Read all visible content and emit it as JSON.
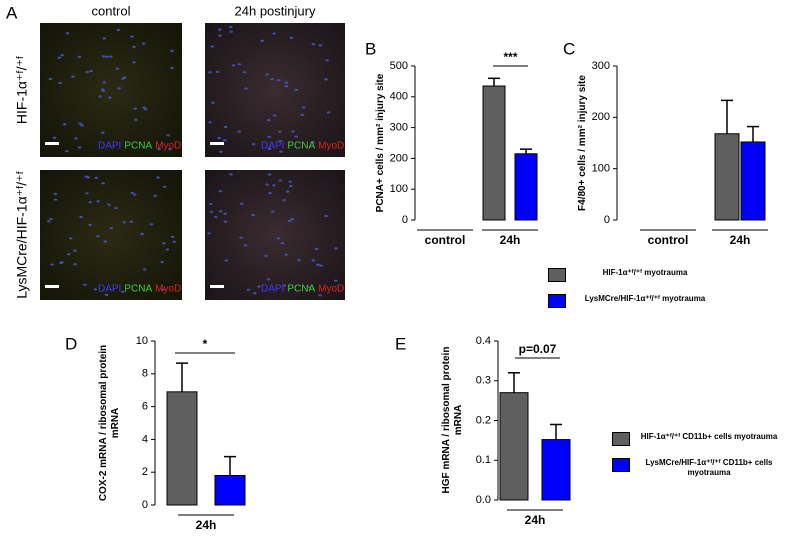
{
  "panel_a": {
    "label": "A",
    "columns": [
      "control",
      "24h postinjury"
    ],
    "rows": [
      "HIF-1α⁺ᶠ/⁺ᶠ",
      "LysMCre/HIF-1α⁺ᶠ/⁺ᶠ"
    ],
    "images": [
      {
        "stains": [
          "DAPI",
          "PCNA",
          "MyoD"
        ]
      },
      {
        "stains": [
          "DAPI",
          "PCNA",
          "MyoD"
        ]
      },
      {
        "stains": [
          "DAPI",
          "PCNA",
          "MyoD"
        ]
      },
      {
        "stains": [
          "DAPI",
          "PCNA",
          "MyoD"
        ]
      }
    ]
  },
  "chart_data": [
    {
      "type": "bar",
      "panel_label": "B",
      "y_label": "PCNA+ cells / mm² injury site",
      "categories": [
        "control",
        "24h"
      ],
      "annotation": "***",
      "series": [
        {
          "name": "HIF-1α⁺ᶠ/⁺ᶠ myotrauma",
          "color": "#5f5f5f",
          "values": [
            0,
            435
          ],
          "errors": [
            null,
            25
          ]
        },
        {
          "name": "LysMCre/HIF-1α⁺ᶠ/⁺ᶠ myotrauma",
          "color": "#0000ff",
          "values": [
            0,
            215
          ],
          "errors": [
            null,
            15
          ]
        }
      ],
      "ylim": [
        0,
        500
      ],
      "yticks": [
        0,
        100,
        200,
        300,
        400,
        500
      ]
    },
    {
      "type": "bar",
      "panel_label": "C",
      "y_label": "F4/80+ cells / mm² injury site",
      "categories": [
        "control",
        "24h"
      ],
      "series": [
        {
          "color": "#5f5f5f",
          "values": [
            0,
            168
          ],
          "errors": [
            null,
            65
          ]
        },
        {
          "color": "#0000ff",
          "values": [
            0,
            152
          ],
          "errors": [
            null,
            30
          ]
        }
      ],
      "ylim": [
        0,
        300
      ],
      "yticks": [
        0,
        100,
        200,
        300
      ]
    },
    {
      "type": "bar",
      "panel_label": "D",
      "y_label": "COX-2 mRNA / ribosomal protein mRNA",
      "categories": [
        "24h"
      ],
      "annotation": "*",
      "series": [
        {
          "color": "#5f5f5f",
          "values": [
            6.9
          ],
          "errors": [
            1.75
          ]
        },
        {
          "color": "#0000ff",
          "values": [
            1.8
          ],
          "errors": [
            1.15
          ]
        }
      ],
      "ylim": [
        0,
        10
      ],
      "yticks": [
        0,
        2,
        4,
        6,
        8,
        10
      ]
    },
    {
      "type": "bar",
      "panel_label": "E",
      "y_label": "HGF mRNA / ribosomal protein mRNA",
      "categories": [
        "24h"
      ],
      "annotation": "p=0.07",
      "series": [
        {
          "name": "HIF-1α⁺ᶠ/⁺ᶠ CD11b+ cells myotrauma",
          "color": "#5f5f5f",
          "values": [
            0.27
          ],
          "errors": [
            0.05
          ]
        },
        {
          "name": "LysMCre/HIF-1α⁺ᶠ/⁺ᶠ CD11b+ cells myotrauma",
          "color": "#0000ff",
          "values": [
            0.152
          ],
          "errors": [
            0.038
          ]
        }
      ],
      "ylim": [
        0,
        0.4
      ],
      "yticks": [
        {
          "value": 0,
          "label": "0.0"
        },
        0.1,
        0.2,
        0.3,
        0.4
      ]
    }
  ]
}
